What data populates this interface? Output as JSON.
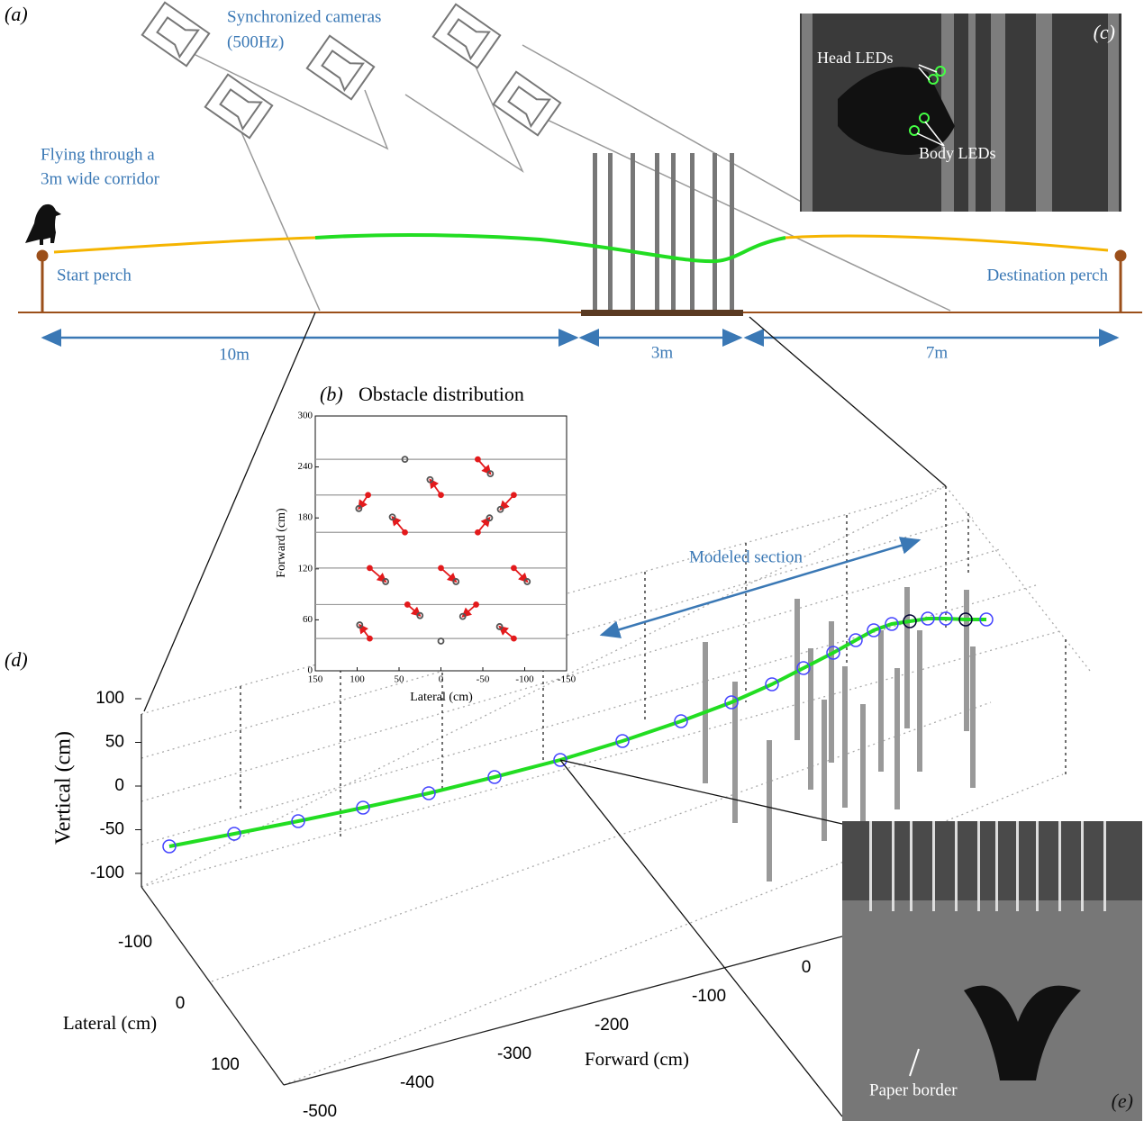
{
  "panel_a": {
    "label": "(a)",
    "cameras_label": [
      "Synchronized cameras",
      "(500Hz)"
    ],
    "corridor_label": [
      "Flying through a",
      "3m wide corridor"
    ],
    "start": "Start perch",
    "destination": "Destination perch",
    "distances": [
      "10m",
      "3m",
      "7m"
    ]
  },
  "chart_data": {
    "type": "scatter",
    "label": "(b)",
    "title": "Obstacle distribution",
    "xlabel": "Lateral (cm)",
    "ylabel": "Forward (cm)",
    "xlim": [
      150,
      -150
    ],
    "ylim": [
      0,
      300
    ],
    "xticks": [
      150,
      100,
      50,
      0,
      -50,
      -100,
      -150
    ],
    "yticks": [
      0,
      60,
      120,
      180,
      240,
      300
    ],
    "hlines": [
      38,
      78,
      121,
      163,
      207,
      249
    ],
    "series": [
      {
        "color": "#555555",
        "x": [
          97,
          25,
          -26,
          -70,
          66,
          -18,
          -103,
          98,
          58,
          -58,
          -71,
          13,
          -59,
          0,
          43
        ],
        "values": [
          54,
          65,
          64,
          52,
          105,
          105,
          105,
          191,
          181,
          180,
          190,
          225,
          232,
          35,
          249
        ]
      },
      {
        "color": "#e31a1c",
        "x": [
          85,
          40,
          -42,
          -87,
          85,
          0,
          -87,
          87,
          43,
          -44,
          -87,
          0,
          -44
        ],
        "values": [
          38,
          78,
          78,
          38,
          121,
          121,
          121,
          207,
          163,
          163,
          207,
          207,
          249
        ]
      }
    ]
  },
  "panel_c": {
    "label": "(c)",
    "head": "Head LEDs",
    "body": "Body LEDs"
  },
  "panel_d": {
    "label": "(d)",
    "annotation": "Modeled section",
    "vertical_axis": {
      "label": "Vertical (cm)",
      "ticks": [
        100,
        50,
        0,
        -50,
        -100
      ]
    },
    "lateral_axis": {
      "label": "Lateral (cm)",
      "ticks": [
        -100,
        0,
        100
      ]
    },
    "forward_axis": {
      "label": "Forward (cm)",
      "ticks": [
        -500,
        -400,
        -300,
        -200,
        -100,
        0
      ]
    }
  },
  "panel_e": {
    "label": "(e)",
    "note": "Paper border"
  }
}
